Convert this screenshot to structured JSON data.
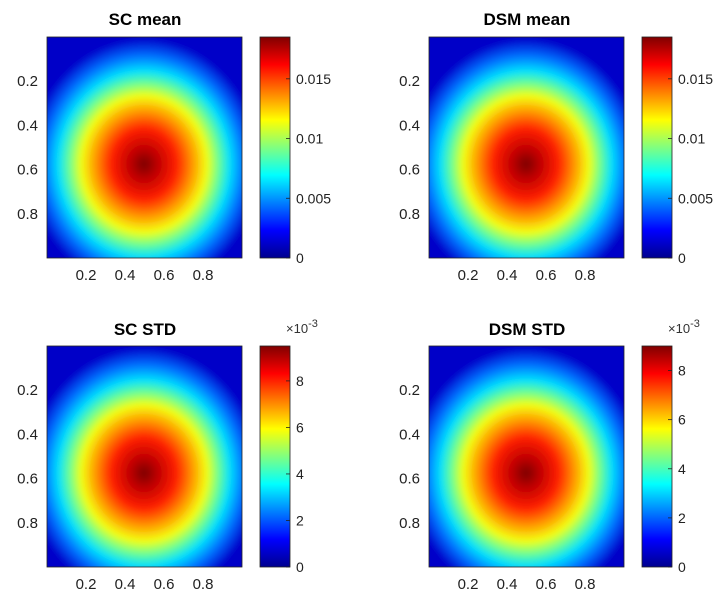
{
  "chart_data": [
    {
      "type": "heatmap",
      "title": "SC mean",
      "colormap": "jet",
      "x_ticks": [
        "0.2",
        "0.4",
        "0.6",
        "0.8"
      ],
      "y_ticks": [
        "0.2",
        "0.4",
        "0.6",
        "0.8"
      ],
      "xlim": [
        0,
        1
      ],
      "ylim": [
        0,
        1
      ],
      "peak": {
        "x": 0.5,
        "y": 0.58
      },
      "clim": [
        0,
        0.0185
      ],
      "colorbar_ticks": [
        0,
        0.005,
        0.01,
        0.015
      ],
      "colorbar_tick_labels": [
        "0",
        "0.005",
        "0.01",
        "0.015"
      ],
      "colorbar_multiplier": ""
    },
    {
      "type": "heatmap",
      "title": "DSM mean",
      "colormap": "jet",
      "x_ticks": [
        "0.2",
        "0.4",
        "0.6",
        "0.8"
      ],
      "y_ticks": [
        "0.2",
        "0.4",
        "0.6",
        "0.8"
      ],
      "xlim": [
        0,
        1
      ],
      "ylim": [
        0,
        1
      ],
      "peak": {
        "x": 0.5,
        "y": 0.58
      },
      "clim": [
        0,
        0.0185
      ],
      "colorbar_ticks": [
        0,
        0.005,
        0.01,
        0.015
      ],
      "colorbar_tick_labels": [
        "0",
        "0.005",
        "0.01",
        "0.015"
      ],
      "colorbar_multiplier": ""
    },
    {
      "type": "heatmap",
      "title": "SC STD",
      "colormap": "jet",
      "x_ticks": [
        "0.2",
        "0.4",
        "0.6",
        "0.8"
      ],
      "y_ticks": [
        "0.2",
        "0.4",
        "0.6",
        "0.8"
      ],
      "xlim": [
        0,
        1
      ],
      "ylim": [
        0,
        1
      ],
      "peak": {
        "x": 0.5,
        "y": 0.58
      },
      "clim": [
        0,
        9.5
      ],
      "colorbar_ticks": [
        0,
        2,
        4,
        6,
        8
      ],
      "colorbar_tick_labels": [
        "0",
        "2",
        "4",
        "6",
        "8"
      ],
      "colorbar_multiplier": "×10",
      "colorbar_multiplier_exp": "-3"
    },
    {
      "type": "heatmap",
      "title": "DSM STD",
      "colormap": "jet",
      "x_ticks": [
        "0.2",
        "0.4",
        "0.6",
        "0.8"
      ],
      "y_ticks": [
        "0.2",
        "0.4",
        "0.6",
        "0.8"
      ],
      "xlim": [
        0,
        1
      ],
      "ylim": [
        0,
        1
      ],
      "peak": {
        "x": 0.5,
        "y": 0.58
      },
      "clim": [
        0,
        9
      ],
      "colorbar_ticks": [
        0,
        2,
        4,
        6,
        8
      ],
      "colorbar_tick_labels": [
        "0",
        "2",
        "4",
        "6",
        "8"
      ],
      "colorbar_multiplier": "×10",
      "colorbar_multiplier_exp": "-3"
    }
  ]
}
